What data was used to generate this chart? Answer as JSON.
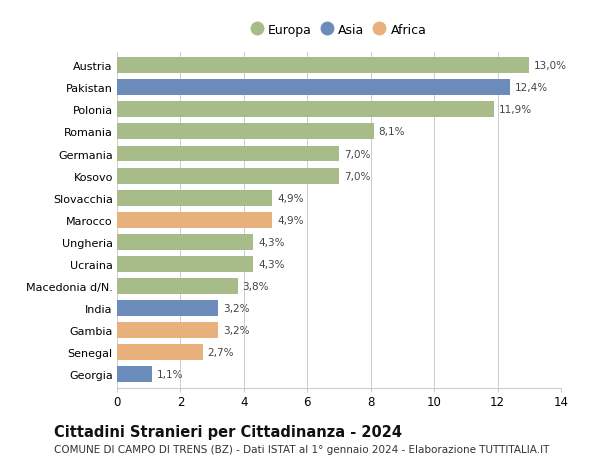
{
  "categories": [
    "Austria",
    "Pakistan",
    "Polonia",
    "Romania",
    "Germania",
    "Kosovo",
    "Slovacchia",
    "Marocco",
    "Ungheria",
    "Ucraina",
    "Macedonia d/N.",
    "India",
    "Gambia",
    "Senegal",
    "Georgia"
  ],
  "values": [
    13.0,
    12.4,
    11.9,
    8.1,
    7.0,
    7.0,
    4.9,
    4.9,
    4.3,
    4.3,
    3.8,
    3.2,
    3.2,
    2.7,
    1.1
  ],
  "labels": [
    "13,0%",
    "12,4%",
    "11,9%",
    "8,1%",
    "7,0%",
    "7,0%",
    "4,9%",
    "4,9%",
    "4,3%",
    "4,3%",
    "3,8%",
    "3,2%",
    "3,2%",
    "2,7%",
    "1,1%"
  ],
  "continents": [
    "Europa",
    "Asia",
    "Europa",
    "Europa",
    "Europa",
    "Europa",
    "Europa",
    "Africa",
    "Europa",
    "Europa",
    "Europa",
    "Asia",
    "Africa",
    "Africa",
    "Asia"
  ],
  "colors": {
    "Europa": "#a8bc8a",
    "Asia": "#6b8cba",
    "Africa": "#e8b07a"
  },
  "legend_order": [
    "Europa",
    "Asia",
    "Africa"
  ],
  "xlim": [
    0,
    14
  ],
  "xticks": [
    0,
    2,
    4,
    6,
    8,
    10,
    12,
    14
  ],
  "title": "Cittadini Stranieri per Cittadinanza - 2024",
  "subtitle": "COMUNE DI CAMPO DI TRENS (BZ) - Dati ISTAT al 1° gennaio 2024 - Elaborazione TUTTITALIA.IT",
  "title_fontsize": 10.5,
  "subtitle_fontsize": 7.5,
  "background_color": "#ffffff",
  "grid_color": "#cccccc",
  "bar_height": 0.72
}
